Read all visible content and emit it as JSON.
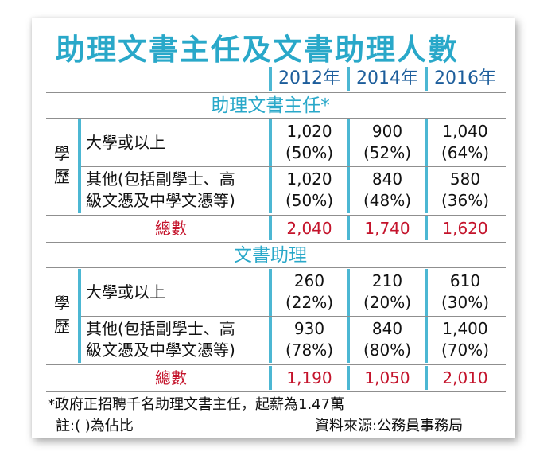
{
  "title": "助理文書主任及文書助理人數",
  "years": [
    "2012年",
    "2014年",
    "2016年"
  ],
  "sections": [
    {
      "name": "助理文書主任*",
      "education_label": [
        "學",
        "歷"
      ],
      "rows": [
        {
          "label": [
            "大學或以上"
          ],
          "values": [
            [
              "1,020",
              "(50%)"
            ],
            [
              "900",
              "(52%)"
            ],
            [
              "1,040",
              "(64%)"
            ]
          ]
        },
        {
          "label": [
            "其他(包括副學士、高",
            "級文憑及中學文憑等)"
          ],
          "values": [
            [
              "1,020",
              "(50%)"
            ],
            [
              "840",
              "(48%)"
            ],
            [
              "580",
              "(36%)"
            ]
          ]
        }
      ],
      "total_label": "總數",
      "totals": [
        "2,040",
        "1,740",
        "1,620"
      ]
    },
    {
      "name": "文書助理",
      "education_label": [
        "學",
        "歷"
      ],
      "rows": [
        {
          "label": [
            "大學或以上"
          ],
          "values": [
            [
              "260",
              "(22%)"
            ],
            [
              "210",
              "(20%)"
            ],
            [
              "610",
              "(30%)"
            ]
          ]
        },
        {
          "label": [
            "其他(包括副學士、高",
            "級文憑及中學文憑等)"
          ],
          "values": [
            [
              "930",
              "(78%)"
            ],
            [
              "840",
              "(80%)"
            ],
            [
              "1,400",
              "(70%)"
            ]
          ]
        }
      ],
      "total_label": "總數",
      "totals": [
        "1,190",
        "1,050",
        "2,010"
      ]
    }
  ],
  "footnote": "*政府正招聘千名助理文書主任，起薪為1.47萬",
  "note": "註:( )為佔比",
  "source": "資料來源:公務員事務局",
  "colors": {
    "title": "#29a8c9",
    "year": "#1c5d9b",
    "total": "#c4132b",
    "rule": "#4cb7d3"
  }
}
